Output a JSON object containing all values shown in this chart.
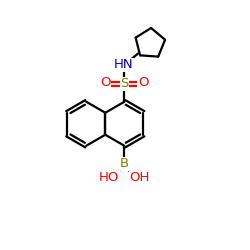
{
  "bg_color": "#ffffff",
  "bond_color": "#000000",
  "N_color": "#0000cc",
  "O_color": "#ff0000",
  "S_color": "#808000",
  "B_color": "#808000",
  "lw": 1.6,
  "figsize": [
    2.5,
    2.5
  ],
  "dpi": 100,
  "xlim": [
    0,
    10
  ],
  "ylim": [
    0,
    10
  ]
}
